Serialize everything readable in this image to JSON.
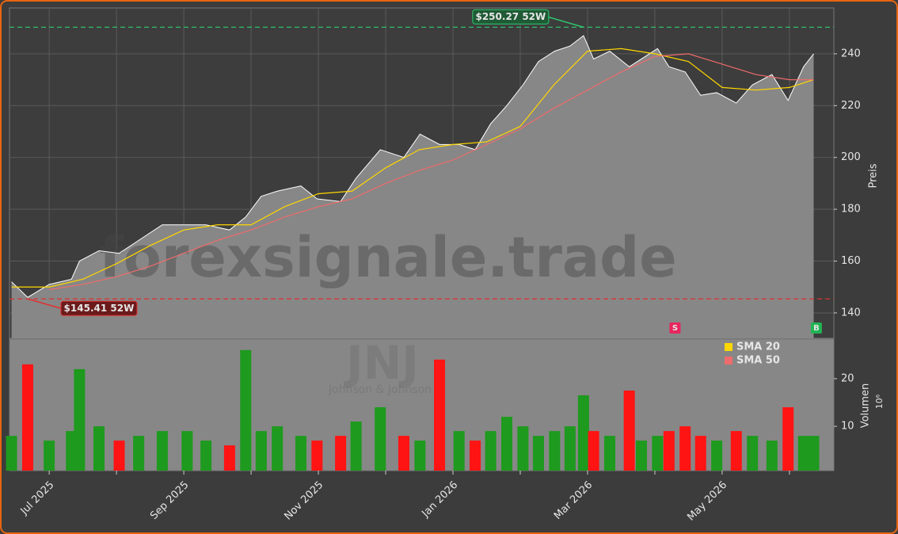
{
  "chart_data": {
    "type": "stock",
    "watermark": "forexsignale.trade",
    "ticker": "JNJ",
    "company": "Johnson & Johnson",
    "y_label": "Preis",
    "volume_label": "Volumen",
    "volume_scale_label": "10⁶",
    "xlim": [
      -0.59,
      11.66
    ],
    "xticks": [
      {
        "value": 0,
        "label": "Jul 2025"
      },
      {
        "value": 2,
        "label": "Sep 2025"
      },
      {
        "value": 4,
        "label": "Nov 2025"
      },
      {
        "value": 6,
        "label": "Jan 2026"
      },
      {
        "value": 8,
        "label": "Mar 2026"
      },
      {
        "value": 10,
        "label": "May 2026"
      }
    ],
    "xminor": [
      1,
      3,
      5,
      7,
      9,
      11
    ],
    "ylim": [
      130.2,
      257.7
    ],
    "yticks": [
      140,
      160,
      180,
      200,
      220,
      240
    ],
    "volume_ylim": [
      0.7,
      28.3
    ],
    "volume_yticks": [
      10,
      20
    ],
    "grid": true,
    "price": {
      "color": "#ffffff",
      "fill": "#878787",
      "x": [
        -0.56,
        -0.32,
        0,
        0.33,
        0.45,
        0.74,
        1.04,
        1.33,
        1.68,
        2.05,
        2.33,
        2.68,
        2.92,
        3.15,
        3.39,
        3.74,
        3.98,
        4.33,
        4.56,
        4.92,
        5.27,
        5.51,
        5.8,
        6.09,
        6.33,
        6.56,
        6.8,
        7.04,
        7.27,
        7.51,
        7.74,
        7.94,
        8.09,
        8.33,
        8.62,
        8.8,
        9.04,
        9.21,
        9.45,
        9.68,
        9.92,
        10.21,
        10.45,
        10.74,
        10.98,
        11.21,
        11.36
      ],
      "values": [
        152,
        146,
        151,
        153,
        160,
        164,
        163,
        168,
        174,
        174,
        174,
        172,
        177,
        185,
        187,
        189,
        184,
        183,
        192,
        203,
        200,
        209,
        205,
        205,
        203,
        213,
        220,
        228,
        237,
        241,
        243,
        247,
        238,
        241,
        235,
        238,
        242,
        235,
        233,
        224,
        225,
        221,
        228,
        232,
        222,
        235,
        240
      ]
    },
    "series": [
      {
        "name": "SMA 20",
        "color": "#ffd700",
        "x": [
          -0.56,
          0,
          0.5,
          1,
          1.5,
          2,
          2.5,
          3,
          3.5,
          4,
          4.5,
          5,
          5.5,
          6,
          6.5,
          7,
          7.5,
          8,
          8.5,
          9,
          9.5,
          10,
          10.5,
          11,
          11.36
        ],
        "values": [
          150,
          150,
          153,
          159,
          166,
          172,
          174,
          174,
          181,
          186,
          187,
          196,
          203,
          205,
          206,
          212,
          228,
          241,
          242,
          240,
          237,
          227,
          226,
          227,
          230
        ]
      },
      {
        "name": "SMA 50",
        "color": "#f06b6b",
        "x": [
          0,
          0.5,
          1,
          1.5,
          2,
          2.5,
          3,
          3.5,
          4,
          4.5,
          5,
          5.5,
          6,
          6.5,
          7,
          7.5,
          8,
          8.5,
          9,
          9.5,
          10,
          10.5,
          11,
          11.36
        ],
        "values": [
          149,
          151,
          154,
          158,
          163,
          168,
          172,
          177,
          181,
          184,
          190,
          195,
          199,
          205,
          211,
          219,
          226,
          233,
          239,
          240,
          236,
          232,
          230,
          230
        ]
      }
    ],
    "volume": {
      "up_color": "#1e9a1e",
      "down_color": "#ff1414",
      "values": [
        8,
        23,
        7,
        9,
        22,
        10,
        7,
        8,
        9,
        9,
        7,
        6,
        26,
        9,
        10,
        8,
        7,
        8,
        11,
        14,
        8,
        7,
        24,
        9,
        7,
        9,
        12,
        10,
        8,
        9,
        10,
        16.5,
        9,
        8,
        17.5,
        7,
        8,
        9,
        10,
        8,
        7,
        9,
        8,
        7,
        14,
        8,
        8
      ]
    },
    "annotations": [
      {
        "label": "$250.27 52W",
        "value": 250.27,
        "x": 7.94,
        "color": "#2ecc71"
      },
      {
        "label": "$145.41 52W",
        "value": 145.41,
        "x": -0.32,
        "color": "#e03030"
      }
    ],
    "signals": [
      {
        "label": "S",
        "x": 9.3,
        "color": "#e8265e"
      },
      {
        "label": "B",
        "x": 11.4,
        "color": "#22b455"
      }
    ]
  }
}
